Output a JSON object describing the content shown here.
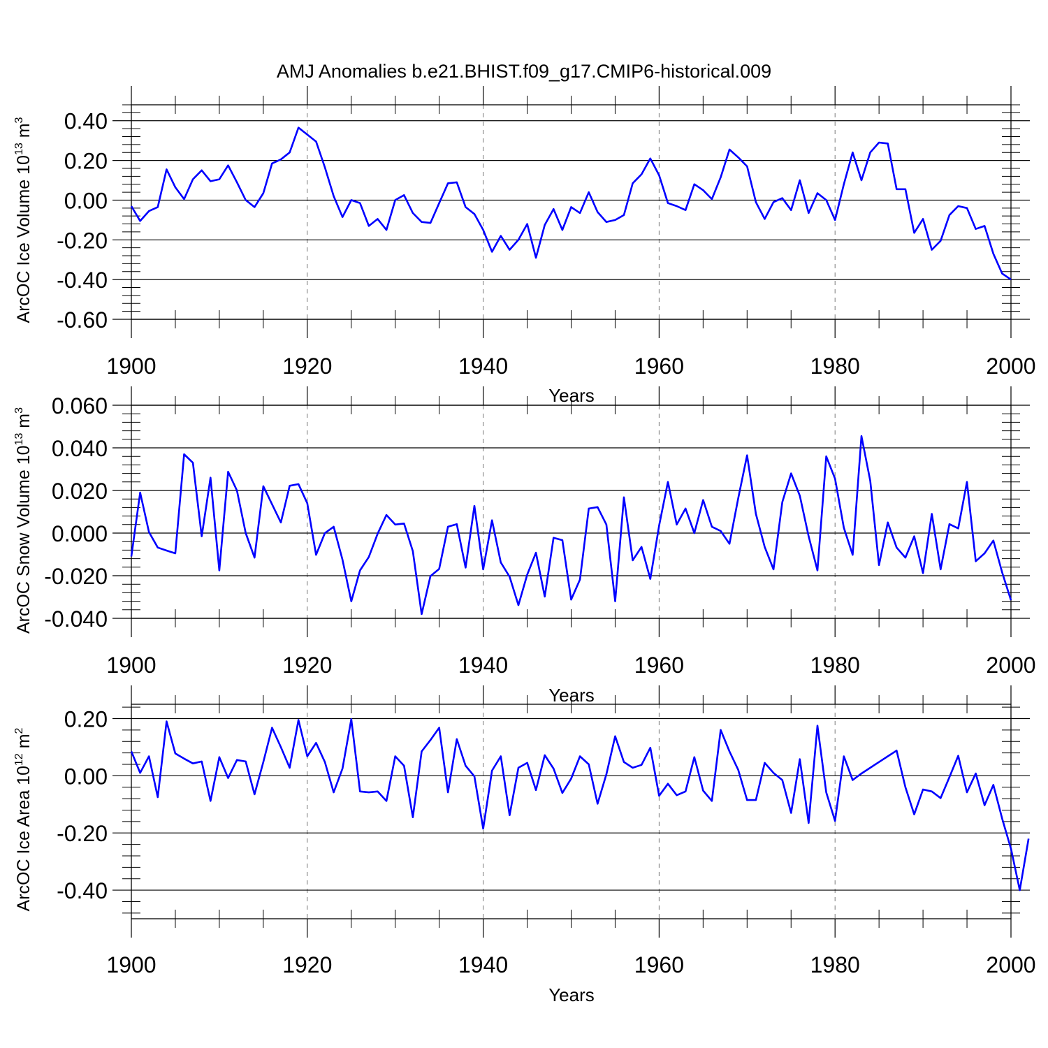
{
  "title": "AMJ Anomalies b.e21.BHIST.f09_g17.CMIP6-historical.009",
  "chart_data": [
    {
      "type": "line",
      "ylabel": "ArcOC Ice Volume 10",
      "ylabel_exp": "13",
      "ylabel_unit": " m",
      "ylabel_unit_exp": "3",
      "xlabel": "Years",
      "xlim": [
        1900,
        2000
      ],
      "ylim": [
        -0.6,
        0.48
      ],
      "yticks": [
        -0.6,
        -0.4,
        -0.2,
        0.0,
        0.2,
        0.4
      ],
      "ytick_labels": [
        "-0.60",
        "-0.40",
        "-0.20",
        "0.00",
        "0.20",
        "0.40"
      ],
      "xticks": [
        1900,
        1920,
        1940,
        1960,
        1980,
        2000
      ],
      "xtick_labels": [
        "1900",
        "1920",
        "1940",
        "1960",
        "1980",
        "2000"
      ],
      "line_color": "#0000ff",
      "x_start": 1900,
      "values": [
        -0.03,
        -0.105,
        -0.055,
        -0.035,
        0.155,
        0.065,
        0.005,
        0.105,
        0.15,
        0.095,
        0.105,
        0.175,
        0.09,
        0.0,
        -0.035,
        0.035,
        0.185,
        0.205,
        0.24,
        0.365,
        0.33,
        0.295,
        0.165,
        0.02,
        -0.085,
        0.0,
        -0.015,
        -0.13,
        -0.095,
        -0.15,
        0.0,
        0.025,
        -0.065,
        -0.11,
        -0.115,
        -0.015,
        0.085,
        0.09,
        -0.035,
        -0.07,
        -0.15,
        -0.26,
        -0.18,
        -0.25,
        -0.2,
        -0.12,
        -0.29,
        -0.125,
        -0.045,
        -0.15,
        -0.035,
        -0.065,
        0.04,
        -0.06,
        -0.11,
        -0.1,
        -0.075,
        0.085,
        0.13,
        0.21,
        0.125,
        -0.015,
        -0.03,
        -0.05,
        0.08,
        0.05,
        0.005,
        0.115,
        0.255,
        0.215,
        0.17,
        -0.01,
        -0.095,
        -0.01,
        0.01,
        -0.05,
        0.1,
        -0.065,
        0.035,
        0.0,
        -0.1,
        0.08,
        0.24,
        0.1,
        0.24,
        0.29,
        0.285,
        0.055,
        0.055,
        -0.165,
        -0.095,
        -0.25,
        -0.205,
        -0.075,
        -0.03,
        -0.04,
        -0.145,
        -0.13,
        -0.27,
        -0.37,
        -0.4
      ]
    },
    {
      "type": "line",
      "ylabel": "ArcOC Snow Volume 10",
      "ylabel_exp": "13",
      "ylabel_unit": " m",
      "ylabel_unit_exp": "3",
      "xlabel": "Years",
      "xlim": [
        1900,
        2000
      ],
      "ylim": [
        -0.04,
        0.06
      ],
      "yticks": [
        -0.04,
        -0.02,
        0.0,
        0.02,
        0.04,
        0.06
      ],
      "ytick_labels": [
        "-0.040",
        "-0.020",
        "0.000",
        "0.020",
        "0.040",
        "0.060"
      ],
      "xticks": [
        1900,
        1920,
        1940,
        1960,
        1980,
        2000
      ],
      "xtick_labels": [
        "1900",
        "1920",
        "1940",
        "1960",
        "1980",
        "2000"
      ],
      "line_color": "#0000ff",
      "x_start": 1900,
      "values": [
        -0.011,
        0.019,
        0.0005,
        -0.0068,
        -0.0082,
        -0.0095,
        0.037,
        0.033,
        -0.0015,
        0.026,
        -0.0175,
        0.0288,
        0.02,
        0.0,
        -0.0115,
        0.022,
        0.0135,
        0.005,
        0.0222,
        0.023,
        0.014,
        -0.0102,
        0.0,
        0.003,
        -0.0125,
        -0.032,
        -0.0175,
        -0.0112,
        -0.0003,
        0.0085,
        0.004,
        0.0045,
        -0.0085,
        -0.038,
        -0.0202,
        -0.0168,
        0.003,
        0.0042,
        -0.0162,
        0.0128,
        -0.017,
        0.006,
        -0.0138,
        -0.0205,
        -0.0338,
        -0.0195,
        -0.0092,
        -0.0298,
        -0.0022,
        -0.0033,
        -0.0312,
        -0.0218,
        0.0115,
        0.0122,
        0.004,
        -0.032,
        0.0168,
        -0.0128,
        -0.0065,
        -0.0215,
        0.0035,
        0.024,
        0.004,
        0.0115,
        0.0,
        0.0155,
        0.003,
        0.001,
        -0.005,
        0.0165,
        0.0365,
        0.009,
        -0.0065,
        -0.017,
        0.0145,
        0.028,
        0.0175,
        -0.0015,
        -0.0175,
        0.036,
        0.0255,
        0.0025,
        -0.0102,
        0.0455,
        0.0245,
        -0.015,
        0.005,
        -0.0068,
        -0.0115,
        -0.0015,
        -0.0188,
        0.009,
        -0.017,
        0.0042,
        0.0022,
        0.024,
        -0.0132,
        -0.0095,
        -0.0035,
        -0.0185,
        -0.0315
      ]
    },
    {
      "type": "line",
      "ylabel": "ArcOC Ice Area 10",
      "ylabel_exp": "12",
      "ylabel_unit": " m",
      "ylabel_unit_exp": "2",
      "xlabel": "Years",
      "xlim": [
        1900,
        2000
      ],
      "ylim": [
        -0.5,
        0.25
      ],
      "yticks": [
        -0.4,
        -0.2,
        0.0,
        0.2
      ],
      "ytick_labels": [
        "-0.40",
        "-0.20",
        "0.00",
        "0.20"
      ],
      "xticks": [
        1900,
        1920,
        1940,
        1960,
        1980,
        2000
      ],
      "xtick_labels": [
        "1900",
        "1920",
        "1940",
        "1960",
        "1980",
        "2000"
      ],
      "line_color": "#0000ff",
      "x_start": 1900,
      "values": [
        0.085,
        0.01,
        0.068,
        -0.075,
        0.19,
        0.078,
        0.06,
        0.043,
        0.05,
        -0.088,
        0.065,
        -0.008,
        0.055,
        0.05,
        -0.065,
        0.048,
        0.168,
        0.1,
        0.028,
        0.195,
        0.068,
        0.115,
        0.048,
        -0.058,
        0.025,
        0.198,
        -0.055,
        -0.058,
        -0.055,
        -0.088,
        0.068,
        0.035,
        -0.145,
        0.085,
        0.125,
        0.168,
        -0.058,
        0.128,
        0.035,
        -0.002,
        -0.185,
        0.018,
        0.068,
        -0.138,
        0.028,
        0.045,
        -0.05,
        0.072,
        0.025,
        -0.06,
        -0.01,
        0.068,
        0.04,
        -0.098,
        0.005,
        0.138,
        0.048,
        0.028,
        0.038,
        0.098,
        -0.07,
        -0.028,
        -0.068,
        -0.055,
        0.065,
        -0.052,
        -0.088,
        0.16,
        0.085,
        0.02,
        -0.085,
        -0.085,
        0.045,
        0.01,
        -0.015,
        -0.13,
        0.058,
        -0.165,
        0.175,
        -0.058,
        -0.158,
        0.068,
        -0.015,
        0.008,
        0.028,
        0.048,
        0.068,
        0.088,
        -0.04,
        -0.135,
        -0.048,
        -0.055,
        -0.078,
        -0.005,
        0.07,
        -0.058,
        0.008,
        -0.103,
        -0.032,
        -0.15,
        -0.255,
        -0.4,
        -0.22
      ]
    }
  ]
}
